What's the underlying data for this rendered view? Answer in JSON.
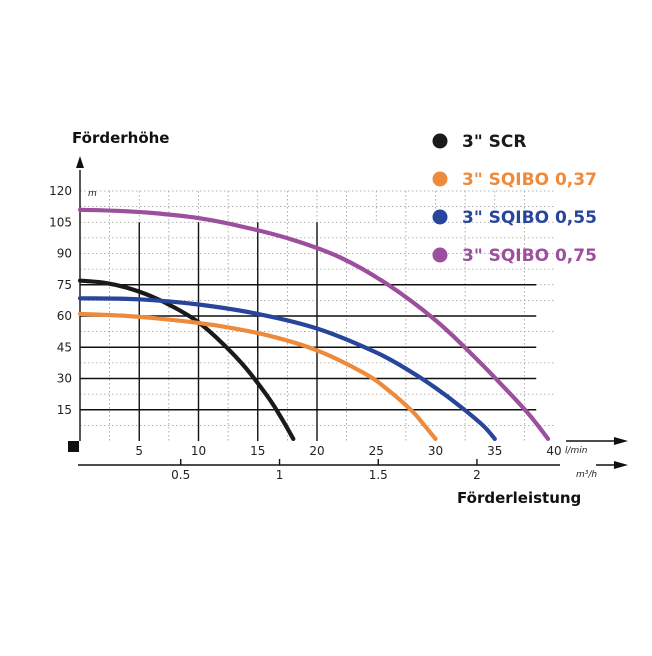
{
  "chart_data": {
    "type": "line",
    "ylabel": "Förderhöhe",
    "y_unit": "m",
    "xlabel": "Förderleistung",
    "x_unit": "l/min",
    "x2_unit": "m³/h",
    "xlim": [
      0,
      40
    ],
    "ylim": [
      0,
      120
    ],
    "x_ticks": [
      5,
      10,
      15,
      20,
      25,
      30,
      35,
      40
    ],
    "y_ticks": [
      15,
      30,
      45,
      60,
      75,
      90,
      105,
      120
    ],
    "x2_ticks": [
      {
        "label": "0.5",
        "lpm": 8.33
      },
      {
        "label": "1",
        "lpm": 16.67
      },
      {
        "label": "1.5",
        "lpm": 25
      },
      {
        "label": "2",
        "lpm": 33.33
      }
    ],
    "grid": true,
    "legend_position": "top-right",
    "series": [
      {
        "name": "3\" SCR",
        "color": "#1a1a1a",
        "x": [
          0,
          2,
          4,
          6,
          8,
          10,
          12,
          14,
          16,
          17,
          18
        ],
        "y": [
          77,
          76,
          73.5,
          69.5,
          64,
          57,
          47,
          35,
          20,
          11,
          1
        ]
      },
      {
        "name": "3\" SQIBO 0,37",
        "color": "#ee8a3c",
        "x": [
          0,
          4,
          8,
          12,
          16,
          20,
          24,
          26,
          28,
          29,
          30
        ],
        "y": [
          61,
          60,
          58,
          55,
          50.5,
          43.5,
          32.5,
          24.5,
          14.5,
          8,
          1
        ]
      },
      {
        "name": "3\" SQIBO 0,55",
        "color": "#28459c",
        "x": [
          0,
          5,
          10,
          15,
          20,
          25,
          28,
          30,
          32,
          34,
          35
        ],
        "y": [
          68.5,
          68,
          65.5,
          61,
          54,
          42.5,
          33,
          25.5,
          17,
          7.5,
          1
        ]
      },
      {
        "name": "3\" SQIBO 0,75",
        "color": "#9b4f9c",
        "x": [
          0,
          3,
          6,
          10,
          14,
          18,
          22,
          26,
          30,
          33,
          36,
          38,
          39.5
        ],
        "y": [
          111,
          110.5,
          109.5,
          107,
          102.5,
          96.5,
          88,
          75,
          58,
          42,
          24.5,
          12,
          1
        ]
      }
    ]
  }
}
